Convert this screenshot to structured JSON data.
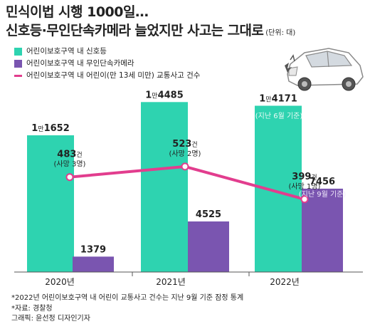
{
  "header": {
    "title_line1": "민식이법 시행 1000일…",
    "title_line2": "신호등·무인단속카메라 늘었지만 사고는 그대로",
    "unit": "(단위: 대)"
  },
  "legend": {
    "items": [
      {
        "label": "어린이보호구역 내 신호등",
        "color": "#2ed3b0",
        "kind": "bar"
      },
      {
        "label": "어린이보호구역 내 무인단속카메라",
        "color": "#7a55b0",
        "kind": "bar"
      },
      {
        "label": "어린이보호구역 내 어린이(만 13세 미만) 교통사고 건수",
        "color": "#e23d8e",
        "kind": "line"
      }
    ]
  },
  "chart_data": {
    "type": "bar",
    "categories": [
      "2020년",
      "2021년",
      "2022년"
    ],
    "series": [
      {
        "name": "어린이보호구역 내 신호등",
        "values": [
          11652,
          14485,
          14171
        ],
        "labels": [
          [
            "1",
            "만",
            "1652"
          ],
          [
            "1",
            "만",
            "4485"
          ],
          [
            "1",
            "만",
            "4171"
          ]
        ],
        "color": "#2ed3b0"
      },
      {
        "name": "어린이보호구역 내 무인단속카메라",
        "values": [
          1379,
          4525,
          7456
        ],
        "labels": [
          "1379",
          "4525",
          "7456"
        ],
        "color": "#7a55b0"
      }
    ],
    "line_series": {
      "name": "어린이보호구역 내 어린이(만 13세 미만) 교통사고 건수",
      "values": [
        483,
        523,
        399
      ],
      "unit": "건",
      "deaths": [
        "(사망 3명)",
        "(사망 2명)",
        "(사망 1명)"
      ],
      "color": "#e23d8e"
    },
    "annotations": [
      "(지난 6월 기준)",
      "(지난 9월 기준)"
    ]
  },
  "notes": [
    "*2022년 어린이보호구역 내 어린이 교통사고 건수는 지난 9월 기준 잠정 통계",
    "*자료: 경찰청",
    "그래픽: 윤선정 디자인기자"
  ]
}
